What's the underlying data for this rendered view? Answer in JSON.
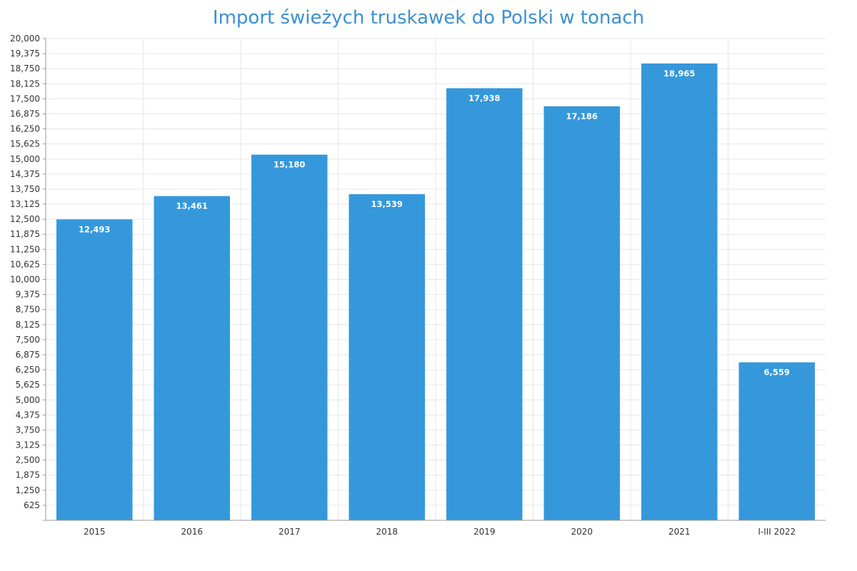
{
  "chart_data": {
    "type": "bar",
    "title": "Import świeżych truskawek do Polski w tonach",
    "categories": [
      "2015",
      "2016",
      "2017",
      "2018",
      "2019",
      "2020",
      "2021",
      "I-III 2022"
    ],
    "values": [
      12493,
      13461,
      15180,
      13539,
      17938,
      17186,
      18965,
      6559
    ],
    "data_labels": [
      "12,493",
      "13,461",
      "15,180",
      "13,539",
      "17,938",
      "17,186",
      "18,965",
      "6,559"
    ],
    "ylim": [
      0,
      20000
    ],
    "y_ticks": [
      625,
      1250,
      1875,
      2500,
      3125,
      3750,
      4375,
      5000,
      5625,
      6250,
      6875,
      7500,
      8125,
      8750,
      9375,
      10000,
      10625,
      11250,
      11875,
      12500,
      13125,
      13750,
      14375,
      15000,
      15625,
      16250,
      16875,
      17500,
      18125,
      18750,
      19375,
      20000
    ],
    "y_tick_labels": [
      "625",
      "1,250",
      "1,875",
      "2,500",
      "3,125",
      "3,750",
      "4,375",
      "5,000",
      "5,625",
      "6,250",
      "6,875",
      "7,500",
      "8,125",
      "8,750",
      "9,375",
      "10,000",
      "10,625",
      "11,250",
      "11,875",
      "12,500",
      "13,125",
      "13,750",
      "14,375",
      "15,000",
      "15,625",
      "16,250",
      "16,875",
      "17,500",
      "18,125",
      "18,750",
      "19,375",
      "20,000"
    ],
    "grid": true,
    "legend": "none",
    "bar_color": "#3598db",
    "title_color": "#3d8fd1"
  }
}
